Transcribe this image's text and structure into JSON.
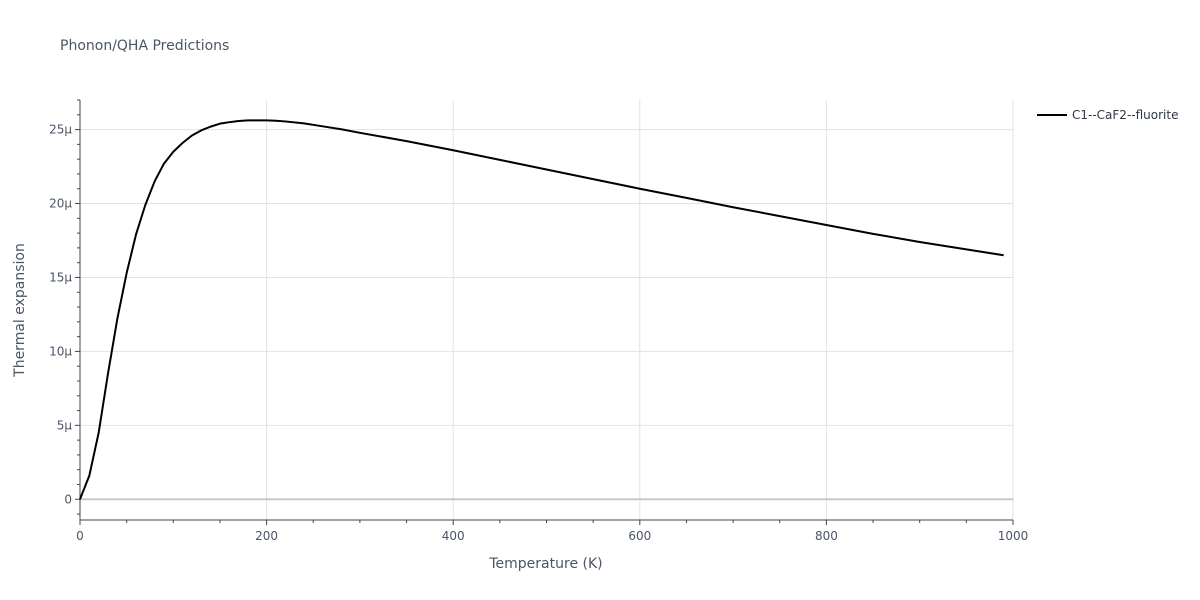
{
  "chart_data": {
    "type": "line",
    "title": "Phonon/QHA Predictions",
    "xlabel": "Temperature (K)",
    "ylabel": "Thermal expansion",
    "xlim": [
      0,
      1000
    ],
    "ylim": [
      -1.4,
      27
    ],
    "x_ticks": [
      0,
      200,
      400,
      600,
      800,
      1000
    ],
    "x_tick_labels": [
      "0",
      "200",
      "400",
      "600",
      "800",
      "1000"
    ],
    "y_ticks": [
      0,
      5,
      10,
      15,
      20,
      25
    ],
    "y_tick_labels": [
      "0",
      "5μ",
      "10μ",
      "15μ",
      "20μ",
      "25μ"
    ],
    "y_unit_note": "values in units of 1e-6 (μ)",
    "grid": true,
    "legend_position": "top-right",
    "series": [
      {
        "name": "C1--CaF2--fluorite",
        "color": "#000000",
        "x": [
          0,
          10,
          20,
          30,
          40,
          50,
          60,
          70,
          80,
          90,
          100,
          110,
          120,
          130,
          140,
          150,
          160,
          170,
          180,
          190,
          200,
          210,
          220,
          240,
          260,
          280,
          300,
          350,
          400,
          450,
          500,
          550,
          600,
          650,
          700,
          750,
          800,
          850,
          900,
          950,
          990
        ],
        "y": [
          0,
          1.6,
          4.5,
          8.5,
          12.2,
          15.3,
          17.9,
          19.9,
          21.5,
          22.7,
          23.5,
          24.1,
          24.6,
          24.95,
          25.2,
          25.4,
          25.5,
          25.58,
          25.62,
          25.62,
          25.62,
          25.6,
          25.55,
          25.42,
          25.22,
          25.02,
          24.78,
          24.22,
          23.6,
          22.95,
          22.3,
          21.65,
          21.0,
          20.38,
          19.75,
          19.15,
          18.55,
          17.95,
          17.4,
          16.9,
          16.5
        ]
      }
    ]
  }
}
